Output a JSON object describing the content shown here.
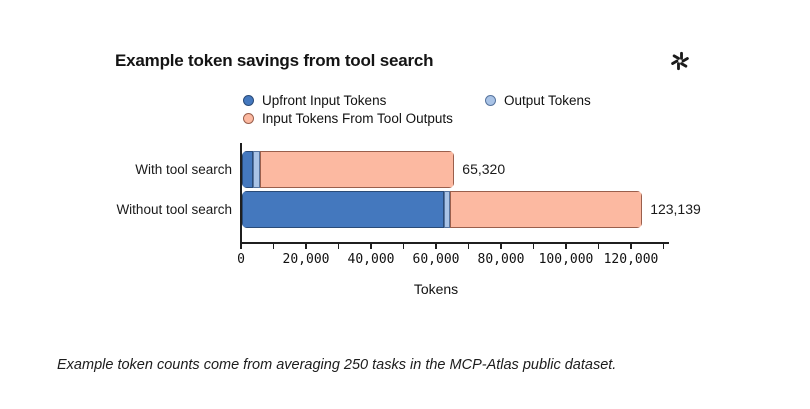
{
  "header": {
    "title": "Example token savings from tool search",
    "logo_icon": "openai-logo"
  },
  "chart_data": {
    "type": "bar",
    "orientation": "horizontal",
    "stacked": true,
    "categories": [
      "With tool search",
      "Without tool search"
    ],
    "series": [
      {
        "name": "Upfront Input Tokens",
        "color": "#4478BE",
        "border": "#2A4B78",
        "values": [
          3400,
          62000
        ]
      },
      {
        "name": "Output Tokens",
        "color": "#A9C3E6",
        "border": "#57749E",
        "values": [
          2100,
          1850
        ]
      },
      {
        "name": "Input Tokens From Tool Outputs",
        "color": "#FCB9A1",
        "border": "#9A5F4C",
        "values": [
          59820,
          59289
        ]
      }
    ],
    "bar_totals": [
      65320,
      123139
    ],
    "bar_total_labels": [
      "65,320",
      "123,139"
    ],
    "xlabel": "Tokens",
    "xlim": [
      0,
      130000
    ],
    "x_major_ticks": [
      0,
      20000,
      40000,
      60000,
      80000,
      100000,
      120000
    ],
    "x_major_tick_labels": [
      "0",
      "20,000",
      "40,000",
      "60,000",
      "80,000",
      "100,000",
      "120,000"
    ],
    "x_minor_tick_step": 10000,
    "legend_position": "top",
    "grid": false
  },
  "footnote": "Example token counts come from averaging 250 tasks in the MCP-Atlas public dataset."
}
